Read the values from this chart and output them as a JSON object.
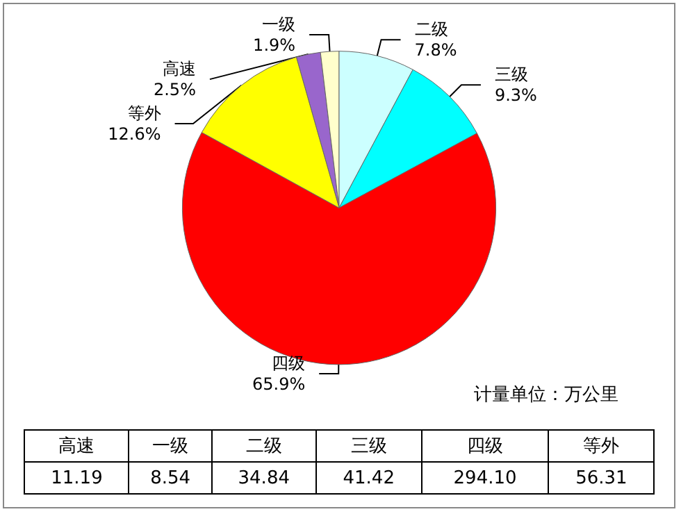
{
  "chart_data": {
    "type": "pie",
    "categories": [
      "高速",
      "一级",
      "二级",
      "三级",
      "四级",
      "等外"
    ],
    "values": [
      2.5,
      1.9,
      7.8,
      9.3,
      65.9,
      12.6
    ],
    "colors": [
      "#9966cc",
      "#ffffcc",
      "#ccffff",
      "#00ffff",
      "#ff0000",
      "#ffff00"
    ],
    "value_labels": [
      "2.5%",
      "1.9%",
      "7.8%",
      "9.3%",
      "65.9%",
      "12.6%"
    ],
    "legend": false,
    "annotations": [
      "计量单位：万公里",
      "11.19",
      "8.54",
      "34.84",
      "41.42",
      "294.10",
      "56.31"
    ]
  }
}
